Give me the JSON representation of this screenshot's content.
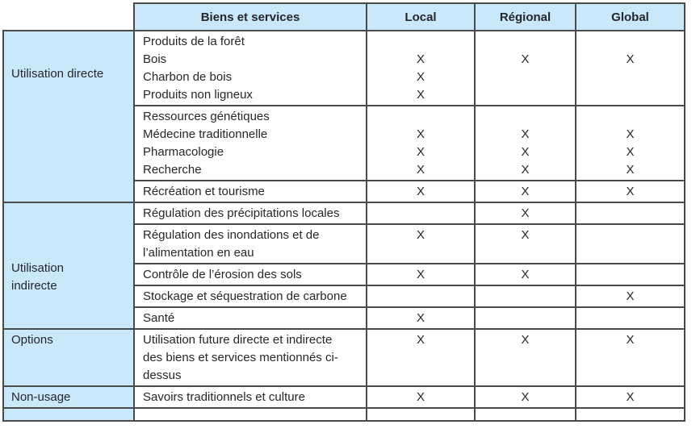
{
  "colors": {
    "header_bg": "#c9e8fa",
    "border": "#4a4a4a",
    "text": "#26262b"
  },
  "table": {
    "header": {
      "biens": "Biens et services",
      "local": "Local",
      "regional": "Régional",
      "global": "Global"
    },
    "groups": [
      {
        "label": "Utilisation directe",
        "blocks": [
          {
            "lines": [
              "Produits de la forêt",
              "Bois",
              "Charbon de bois",
              "Produits non ligneux"
            ],
            "marks": {
              "local": [
                "",
                "X",
                "X",
                "X"
              ],
              "regional": [
                "",
                "X",
                "",
                ""
              ],
              "global": [
                "",
                "X",
                "",
                ""
              ]
            }
          },
          {
            "lines": [
              "Ressources génétiques",
              "Médecine traditionnelle",
              "Pharmacologie",
              "Recherche"
            ],
            "marks": {
              "local": [
                "",
                "X",
                "X",
                "X"
              ],
              "regional": [
                "",
                "X",
                "X",
                "X"
              ],
              "global": [
                "",
                "X",
                "X",
                "X"
              ]
            }
          },
          {
            "lines": [
              "Récréation et tourisme"
            ],
            "marks": {
              "local": [
                "X"
              ],
              "regional": [
                "X"
              ],
              "global": [
                "X"
              ]
            }
          }
        ]
      },
      {
        "label": "Utilisation indirecte",
        "blocks": [
          {
            "lines": [
              "Régulation des précipitations locales"
            ],
            "marks": {
              "local": [
                ""
              ],
              "regional": [
                "X"
              ],
              "global": [
                ""
              ]
            }
          },
          {
            "lines": [
              "Régulation des inondations et de l’alimentation en eau"
            ],
            "marks": {
              "local": [
                "X"
              ],
              "regional": [
                "X"
              ],
              "global": [
                ""
              ]
            }
          },
          {
            "lines": [
              "Contrôle de l’érosion des sols"
            ],
            "marks": {
              "local": [
                "X"
              ],
              "regional": [
                "X"
              ],
              "global": [
                ""
              ]
            }
          },
          {
            "lines": [
              "Stockage et séquestration de carbone"
            ],
            "marks": {
              "local": [
                ""
              ],
              "regional": [
                ""
              ],
              "global": [
                "X"
              ]
            }
          },
          {
            "lines": [
              "Santé"
            ],
            "marks": {
              "local": [
                "X"
              ],
              "regional": [
                ""
              ],
              "global": [
                ""
              ]
            }
          }
        ]
      },
      {
        "label": "Options",
        "blocks": [
          {
            "lines": [
              "Utilisation future directe et indirecte des biens et services mentionnés ci-dessus"
            ],
            "marks": {
              "local": [
                "X"
              ],
              "regional": [
                "X"
              ],
              "global": [
                "X"
              ]
            }
          }
        ]
      },
      {
        "label": "Non-usage",
        "blocks": [
          {
            "lines": [
              "Savoirs traditionnels et culture"
            ],
            "marks": {
              "local": [
                "X"
              ],
              "regional": [
                "X"
              ],
              "global": [
                "X"
              ]
            }
          }
        ]
      }
    ]
  }
}
